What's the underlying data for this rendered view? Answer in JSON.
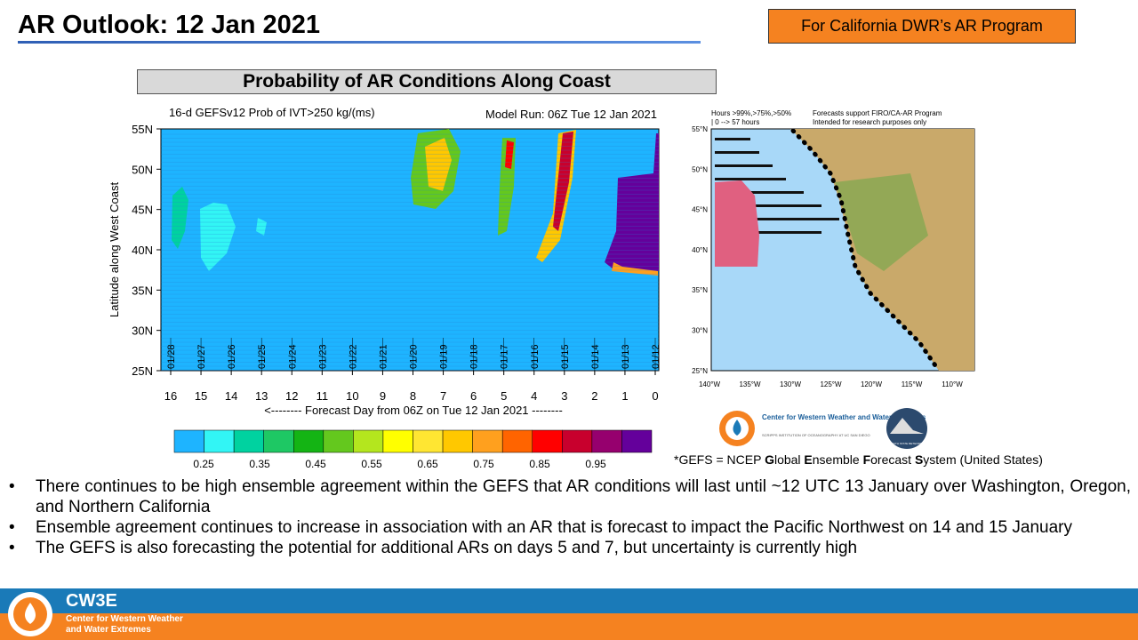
{
  "header": {
    "title": "AR Outlook: 12 Jan 2021",
    "badge": "For California DWR’s AR Program"
  },
  "section_title": "Probability of AR Conditions Along Coast",
  "chart": {
    "title_left": "16-d GEFSv12 Prob of IVT>250 kg/(ms)",
    "title_right": "Model Run: 06Z Tue 12 Jan 2021",
    "y_label": "Latitude along West Coast",
    "x_label": "<-------- Forecast Day from 06Z on Tue 12 Jan 2021 --------",
    "yticks": [
      "55N",
      "50N",
      "45N",
      "40N",
      "35N",
      "30N",
      "25N"
    ],
    "xticks": [
      "16",
      "15",
      "14",
      "13",
      "12",
      "11",
      "10",
      "9",
      "8",
      "7",
      "6",
      "5",
      "4",
      "3",
      "2",
      "1",
      "0"
    ],
    "dates": [
      "01/28",
      "01/27",
      "01/26",
      "01/25",
      "01/24",
      "01/23",
      "01/22",
      "01/21",
      "01/20",
      "01/19",
      "01/18",
      "01/17",
      "01/16",
      "01/15",
      "01/14",
      "01/13",
      "01/12"
    ],
    "colorbar": {
      "colors": [
        "#1eb4ff",
        "#32f5f5",
        "#00d2a0",
        "#1ec864",
        "#14b414",
        "#64c81e",
        "#b4e61e",
        "#ffff00",
        "#ffe632",
        "#ffc800",
        "#ffa01e",
        "#ff6400",
        "#ff0000",
        "#c8002d",
        "#96006e",
        "#64009b"
      ],
      "labels": [
        "0.25",
        "0.35",
        "0.45",
        "0.55",
        "0.65",
        "0.75",
        "0.85",
        "0.95"
      ]
    }
  },
  "map": {
    "legend_lines": [
      "Hours >99%,>75%,>50%",
      "| 0 --> 57 hours"
    ],
    "notes": [
      "Forecasts support FIRO/CA-AR Program",
      "Intended for research purposes only"
    ],
    "lat_labels": [
      "55°N",
      "50°N",
      "45°N",
      "40°N",
      "35°N",
      "30°N",
      "25°N"
    ],
    "lon_labels": [
      "140°W",
      "135°W",
      "130°W",
      "125°W",
      "120°W",
      "115°W",
      "110°W"
    ]
  },
  "logos": {
    "cw3e_name": "Center for Western Weather and Water Extremes",
    "cw3e_sub": "SCRIPPS INSTITUTION OF OCEANOGRAPHY AT UC SAN DIEGO",
    "psu": "PLYMOUTH STATE METEOROLOGY"
  },
  "footnote": [
    {
      "text": "*GEFS = NCEP ",
      "bold": false
    },
    {
      "text": "G",
      "bold": true
    },
    {
      "text": "lobal ",
      "bold": false
    },
    {
      "text": "E",
      "bold": true
    },
    {
      "text": "nsemble ",
      "bold": false
    },
    {
      "text": "F",
      "bold": true
    },
    {
      "text": "orecast ",
      "bold": false
    },
    {
      "text": "S",
      "bold": true
    },
    {
      "text": "ystem (United States)",
      "bold": false
    }
  ],
  "bullets": [
    "There continues to be high ensemble agreement within the GEFS that AR conditions will last until ~12 UTC 13 January over Washington, Oregon, and Northern California",
    "Ensemble agreement continues to increase in association with an AR that is forecast to impact the Pacific Northwest on 14 and 15 January",
    "The GEFS is also forecasting the potential for additional ARs on days 5 and 7, but uncertainty is currently high"
  ],
  "footer": {
    "logo": "CW3E",
    "line1": "Center for Western Weather",
    "line2": "and Water Extremes"
  }
}
